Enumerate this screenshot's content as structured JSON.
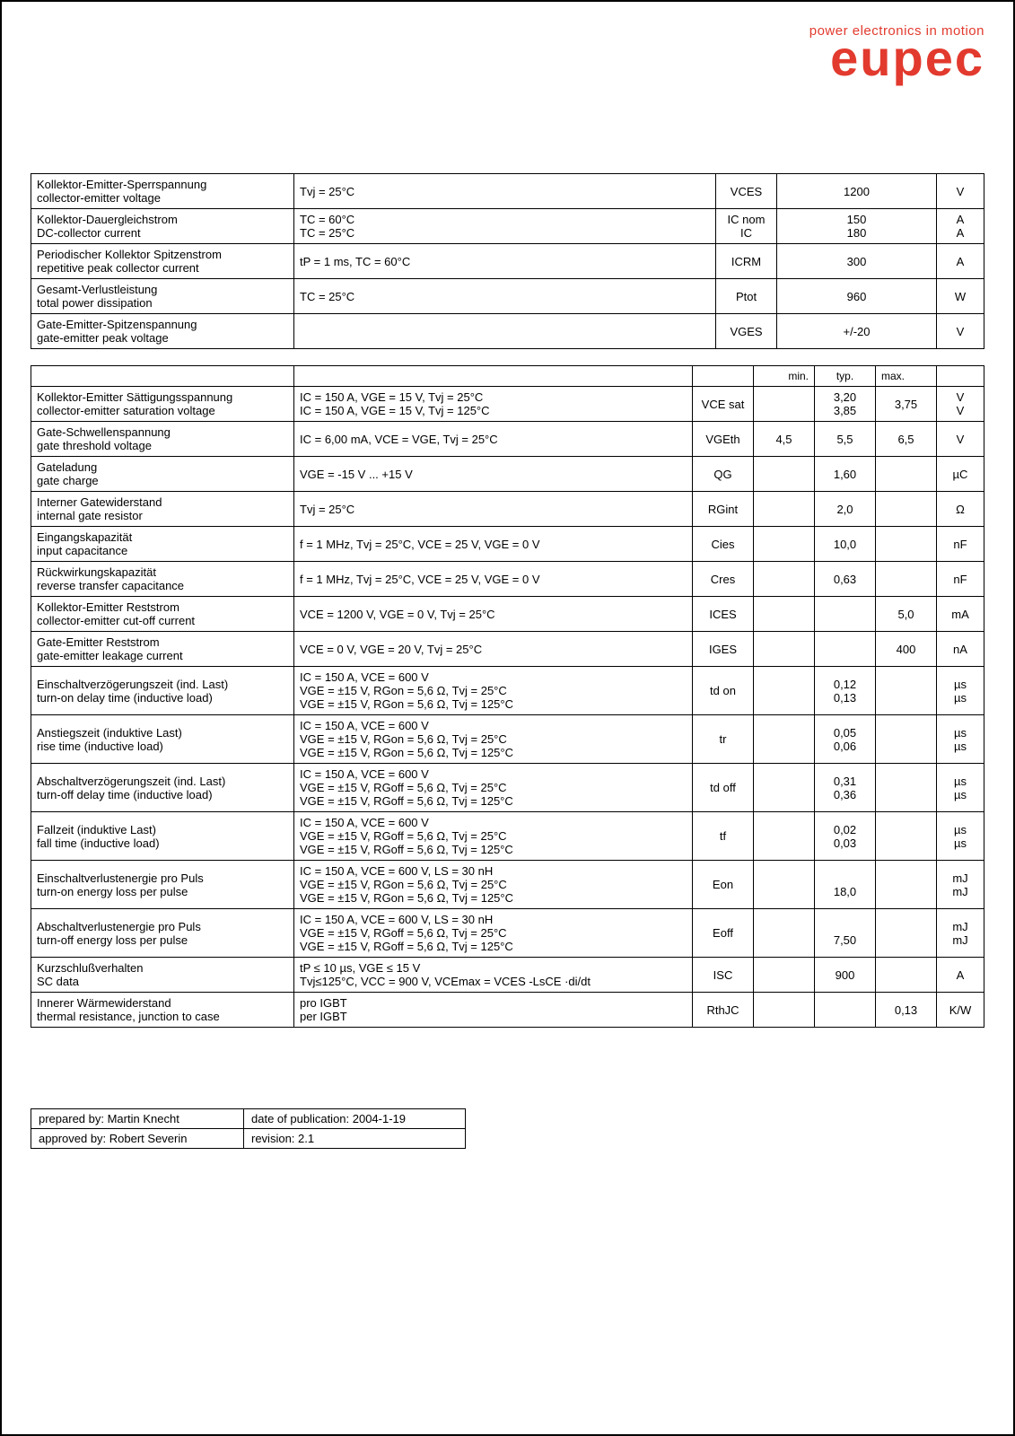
{
  "logo": {
    "tagline": "power electronics in motion",
    "brand": "eupec"
  },
  "table1": {
    "rows": [
      {
        "param1": "Kollektor-Emitter-Sperrspannung",
        "param2": "collector-emitter voltage",
        "cond": "Tvj = 25°C",
        "sym": "VCES",
        "val": "1200",
        "unit": "V"
      },
      {
        "param1": "Kollektor-Dauergleichstrom",
        "param2": "DC-collector current",
        "cond": "TC = 60°C\nTC = 25°C",
        "sym": "IC nom\nIC",
        "val": "150\n180",
        "unit": "A\nA"
      },
      {
        "param1": "Periodischer Kollektor Spitzenstrom",
        "param2": "repetitive peak collector current",
        "cond": "tP = 1 ms, TC = 60°C",
        "sym": "ICRM",
        "val": "300",
        "unit": "A"
      },
      {
        "param1": "Gesamt-Verlustleistung",
        "param2": "total power dissipation",
        "cond": "TC = 25°C",
        "sym": "Ptot",
        "val": "960",
        "unit": "W"
      },
      {
        "param1": "Gate-Emitter-Spitzenspannung",
        "param2": "gate-emitter peak voltage",
        "cond": "",
        "sym": "VGES",
        "val": "+/-20",
        "unit": "V"
      }
    ]
  },
  "table2": {
    "headers": {
      "min": "min.",
      "typ": "typ.",
      "max": "max."
    },
    "rows": [
      {
        "p1": "Kollektor-Emitter Sättigungsspannung",
        "p2": "collector-emitter saturation voltage",
        "cond": "IC = 150 A, VGE = 15 V, Tvj = 25°C\nIC = 150 A, VGE = 15 V, Tvj = 125°C",
        "sym": "VCE sat",
        "min": "",
        "typ": "3,20\n3,85",
        "max": "3,75",
        "unit": "V\nV"
      },
      {
        "p1": "Gate-Schwellenspannung",
        "p2": "gate threshold voltage",
        "cond": "IC = 6,00 mA, VCE = VGE, Tvj = 25°C",
        "sym": "VGEth",
        "min": "4,5",
        "typ": "5,5",
        "max": "6,5",
        "unit": "V"
      },
      {
        "p1": "Gateladung",
        "p2": "gate charge",
        "cond": "VGE = -15 V ... +15 V",
        "sym": "QG",
        "min": "",
        "typ": "1,60",
        "max": "",
        "unit": "µC"
      },
      {
        "p1": "Interner Gatewiderstand",
        "p2": "internal gate resistor",
        "cond": "Tvj = 25°C",
        "sym": "RGint",
        "min": "",
        "typ": "2,0",
        "max": "",
        "unit": "Ω"
      },
      {
        "p1": "Eingangskapazität",
        "p2": "input capacitance",
        "cond": "f = 1 MHz, Tvj = 25°C, VCE = 25 V, VGE = 0 V",
        "sym": "Cies",
        "min": "",
        "typ": "10,0",
        "max": "",
        "unit": "nF"
      },
      {
        "p1": "Rückwirkungskapazität",
        "p2": "reverse transfer capacitance",
        "cond": "f = 1 MHz, Tvj = 25°C, VCE = 25 V, VGE = 0 V",
        "sym": "Cres",
        "min": "",
        "typ": "0,63",
        "max": "",
        "unit": "nF"
      },
      {
        "p1": "Kollektor-Emitter Reststrom",
        "p2": "collector-emitter cut-off current",
        "cond": "VCE = 1200 V, VGE = 0 V, Tvj = 25°C",
        "sym": "ICES",
        "min": "",
        "typ": "",
        "max": "5,0",
        "unit": "mA"
      },
      {
        "p1": "Gate-Emitter Reststrom",
        "p2": "gate-emitter leakage current",
        "cond": "VCE = 0 V, VGE = 20 V, Tvj = 25°C",
        "sym": "IGES",
        "min": "",
        "typ": "",
        "max": "400",
        "unit": "nA"
      },
      {
        "p1": "Einschaltverzögerungszeit (ind. Last)",
        "p2": "turn-on delay time (inductive load)",
        "cond": "IC = 150 A, VCE = 600 V\nVGE = ±15 V, RGon = 5,6 Ω, Tvj = 25°C\nVGE = ±15 V, RGon = 5,6 Ω, Tvj = 125°C",
        "sym": "td on",
        "min": "",
        "typ": "0,12\n0,13",
        "max": "",
        "unit": "µs\nµs"
      },
      {
        "p1": "Anstiegszeit (induktive Last)",
        "p2": "rise time (inductive load)",
        "cond": "IC = 150 A, VCE = 600 V\nVGE = ±15 V, RGon = 5,6 Ω, Tvj = 25°C\nVGE = ±15 V, RGon = 5,6 Ω, Tvj = 125°C",
        "sym": "tr",
        "min": "",
        "typ": "0,05\n0,06",
        "max": "",
        "unit": "µs\nµs"
      },
      {
        "p1": "Abschaltverzögerungszeit (ind. Last)",
        "p2": "turn-off delay time (inductive load)",
        "cond": "IC = 150 A, VCE = 600 V\nVGE = ±15 V, RGoff = 5,6 Ω, Tvj = 25°C\nVGE = ±15 V, RGoff = 5,6 Ω, Tvj = 125°C",
        "sym": "td off",
        "min": "",
        "typ": "0,31\n0,36",
        "max": "",
        "unit": "µs\nµs"
      },
      {
        "p1": "Fallzeit (induktive Last)",
        "p2": "fall time (inductive load)",
        "cond": "IC = 150 A, VCE = 600 V\nVGE = ±15 V, RGoff = 5,6 Ω, Tvj = 25°C\nVGE = ±15 V, RGoff = 5,6 Ω, Tvj = 125°C",
        "sym": "tf",
        "min": "",
        "typ": "0,02\n0,03",
        "max": "",
        "unit": "µs\nµs"
      },
      {
        "p1": "Einschaltverlustenergie pro Puls",
        "p2": "turn-on energy loss per pulse",
        "cond": "IC = 150 A, VCE = 600 V, LS = 30 nH\nVGE = ±15 V, RGon = 5,6 Ω, Tvj = 25°C\nVGE = ±15 V, RGon = 5,6 Ω, Tvj = 125°C",
        "sym": "Eon",
        "min": "",
        "typ": "\n18,0",
        "max": "",
        "unit": "mJ\nmJ"
      },
      {
        "p1": "Abschaltverlustenergie pro Puls",
        "p2": "turn-off energy loss per pulse",
        "cond": "IC = 150 A, VCE = 600 V, LS = 30 nH\nVGE = ±15 V, RGoff = 5,6 Ω, Tvj = 25°C\nVGE = ±15 V, RGoff = 5,6 Ω, Tvj = 125°C",
        "sym": "Eoff",
        "min": "",
        "typ": "\n7,50",
        "max": "",
        "unit": "mJ\nmJ"
      },
      {
        "p1": "Kurzschlußverhalten",
        "p2": "SC data",
        "cond": "tP ≤ 10 µs, VGE ≤ 15 V\nTvj≤125°C, VCC = 900 V, VCEmax = VCES -LsCE ·di/dt",
        "sym": "ISC",
        "min": "",
        "typ": "900",
        "max": "",
        "unit": "A"
      },
      {
        "p1": "Innerer Wärmewiderstand",
        "p2": "thermal resistance, junction to case",
        "cond": "pro IGBT\nper IGBT",
        "sym": "RthJC",
        "min": "",
        "typ": "",
        "max": "0,13",
        "unit": "K/W"
      }
    ]
  },
  "footer": {
    "r1c1": "prepared by: Martin Knecht",
    "r1c2": "date of publication: 2004-1-19",
    "r2c1": "approved by: Robert Severin",
    "r2c2": "revision: 2.1"
  }
}
